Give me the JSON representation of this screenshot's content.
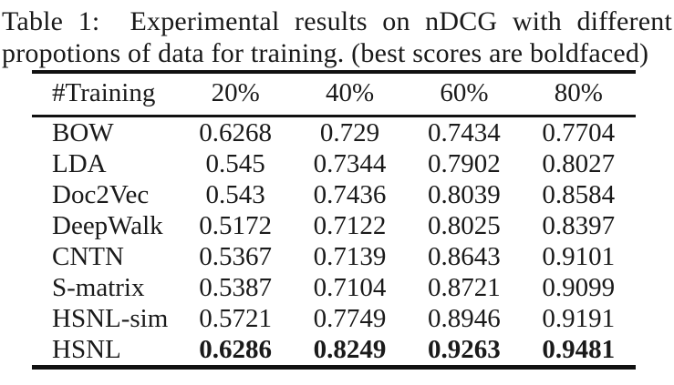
{
  "caption": {
    "line1": "Table 1:  Experimental results on nDCG with different",
    "line2": "propotions of data for training. (best scores are boldfaced)"
  },
  "table": {
    "header": [
      "#Training",
      "20%",
      "40%",
      "60%",
      "80%"
    ],
    "rows": [
      {
        "method": "BOW",
        "values": [
          "0.6268",
          "0.729",
          "0.7434",
          "0.7704"
        ],
        "bold": false
      },
      {
        "method": "LDA",
        "values": [
          "0.545",
          "0.7344",
          "0.7902",
          "0.8027"
        ],
        "bold": false
      },
      {
        "method": "Doc2Vec",
        "values": [
          "0.543",
          "0.7436",
          "0.8039",
          "0.8584"
        ],
        "bold": false
      },
      {
        "method": "DeepWalk",
        "values": [
          "0.5172",
          "0.7122",
          "0.8025",
          "0.8397"
        ],
        "bold": false
      },
      {
        "method": "CNTN",
        "values": [
          "0.5367",
          "0.7139",
          "0.8643",
          "0.9101"
        ],
        "bold": false
      },
      {
        "method": "S-matrix",
        "values": [
          "0.5387",
          "0.7104",
          "0.8721",
          "0.9099"
        ],
        "bold": false
      },
      {
        "method": "HSNL-sim",
        "values": [
          "0.5721",
          "0.7749",
          "0.8946",
          "0.9191"
        ],
        "bold": false
      },
      {
        "method": "HSNL",
        "values": [
          "0.6286",
          "0.8249",
          "0.9263",
          "0.9481"
        ],
        "bold": true
      }
    ]
  },
  "colors": {
    "background": "#ffffff",
    "text": "#1a1a1a",
    "rule": "#111111"
  }
}
